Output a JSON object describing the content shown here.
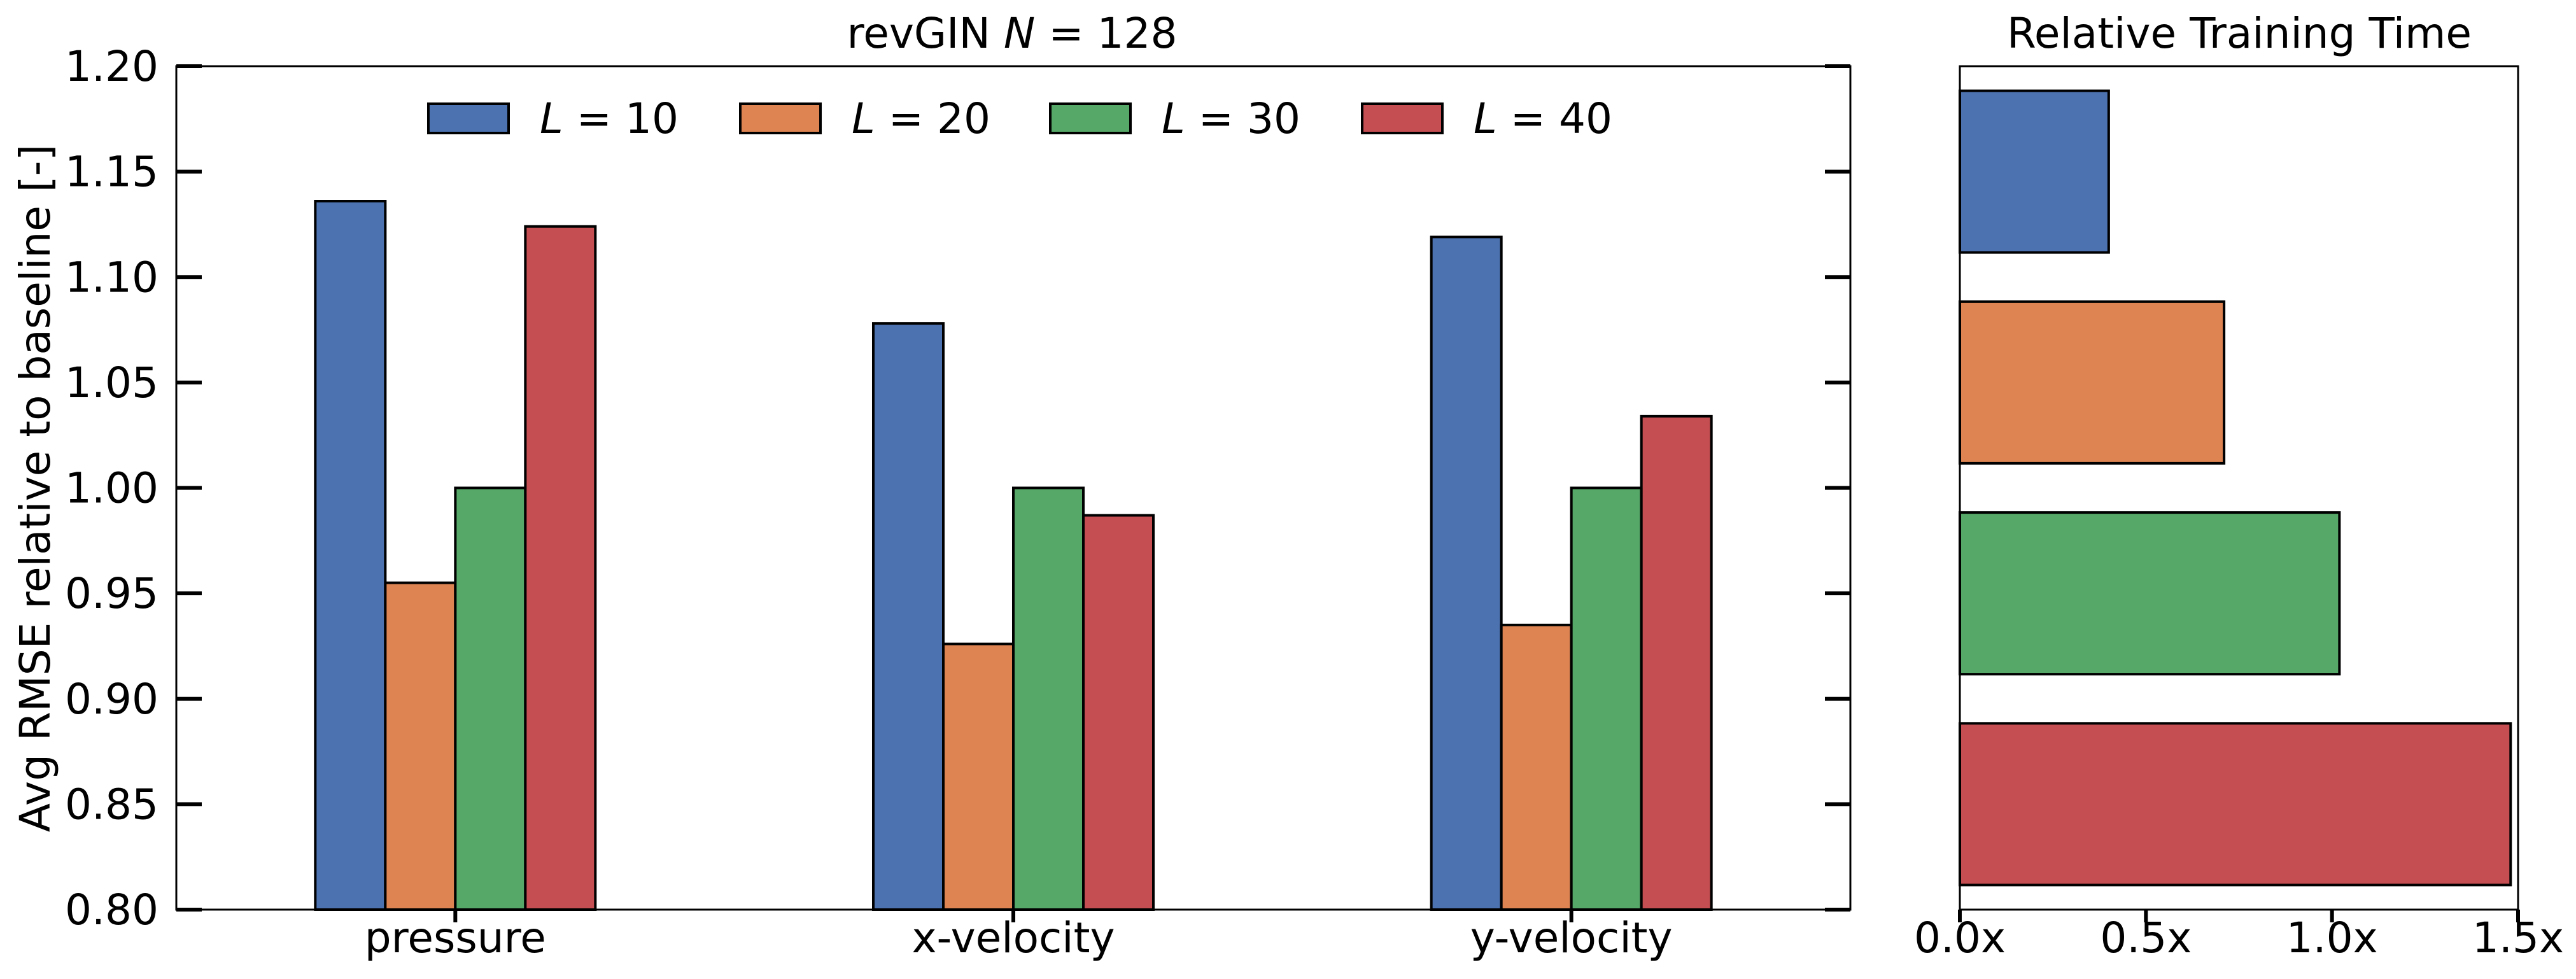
{
  "chart_data": [
    {
      "type": "bar",
      "title": "revGIN N = 128",
      "title_parts": {
        "text": "revGIN ",
        "var": "N",
        "value": " = 128"
      },
      "xlabel": "",
      "ylabel": "Avg RMSE relative to baseline [-]",
      "ylim": [
        0.8,
        1.2
      ],
      "yticks": [
        "0.80",
        "0.85",
        "0.90",
        "0.95",
        "1.00",
        "1.05",
        "1.10",
        "1.15",
        "1.20"
      ],
      "categories": [
        "pressure",
        "x-velocity",
        "y-velocity"
      ],
      "legend_position": "top",
      "grid": false,
      "series": [
        {
          "name": "L = 10",
          "label_var": "L",
          "label_value": " = 10",
          "color": "#4C72B0",
          "values": [
            1.136,
            1.078,
            1.119
          ]
        },
        {
          "name": "L = 20",
          "label_var": "L",
          "label_value": " = 20",
          "color": "#DD8452",
          "values": [
            0.955,
            0.926,
            0.935
          ]
        },
        {
          "name": "L = 30",
          "label_var": "L",
          "label_value": " = 30",
          "color": "#55A868",
          "values": [
            1.0,
            1.0,
            1.0
          ]
        },
        {
          "name": "L = 40",
          "label_var": "L",
          "label_value": " = 40",
          "color": "#C44E52",
          "values": [
            1.124,
            0.987,
            1.034
          ]
        }
      ]
    },
    {
      "type": "bar",
      "orientation": "horizontal",
      "title": "Relative Training Time",
      "xlim": [
        0,
        1.5
      ],
      "xticks": [
        {
          "value": 0.0,
          "label": "0.0x"
        },
        {
          "value": 0.5,
          "label": "0.5x"
        },
        {
          "value": 1.0,
          "label": "1.0x"
        },
        {
          "value": 1.5,
          "label": "1.5x"
        }
      ],
      "grid": false,
      "bars": [
        {
          "series": "L = 10",
          "color": "#4C72B0",
          "value": 0.4
        },
        {
          "series": "L = 20",
          "color": "#DD8452",
          "value": 0.71
        },
        {
          "series": "L = 30",
          "color": "#55A868",
          "value": 1.02
        },
        {
          "series": "L = 40",
          "color": "#C44E52",
          "value": 1.48
        }
      ]
    }
  ]
}
